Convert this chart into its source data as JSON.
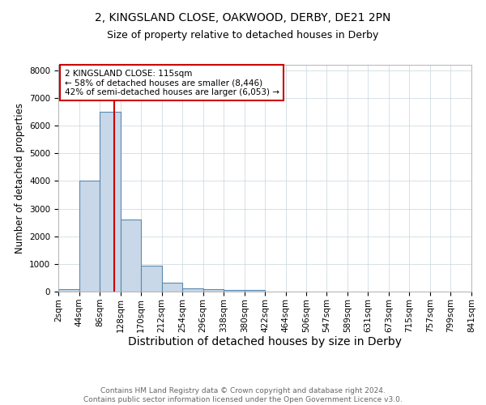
{
  "title1": "2, KINGSLAND CLOSE, OAKWOOD, DERBY, DE21 2PN",
  "title2": "Size of property relative to detached houses in Derby",
  "xlabel": "Distribution of detached houses by size in Derby",
  "ylabel": "Number of detached properties",
  "bar_edges": [
    2,
    44,
    86,
    128,
    170,
    212,
    254,
    296,
    338,
    380,
    422,
    464,
    506,
    547,
    589,
    631,
    673,
    715,
    757,
    799,
    841
  ],
  "bar_heights": [
    100,
    4000,
    6500,
    2600,
    950,
    320,
    130,
    100,
    70,
    60,
    0,
    0,
    0,
    0,
    0,
    0,
    0,
    0,
    0,
    0
  ],
  "bar_color": "#c8d8e8",
  "bar_edgecolor": "#5a8ab0",
  "bar_linewidth": 0.8,
  "vline_x": 115,
  "vline_color": "#cc0000",
  "vline_linewidth": 1.5,
  "annotation_text": "2 KINGSLAND CLOSE: 115sqm\n← 58% of detached houses are smaller (8,446)\n42% of semi-detached houses are larger (6,053) →",
  "annotation_box_color": "#cc0000",
  "annotation_text_color": "#000000",
  "ylim": [
    0,
    8200
  ],
  "xlim": [
    2,
    841
  ],
  "yticks": [
    0,
    1000,
    2000,
    3000,
    4000,
    5000,
    6000,
    7000,
    8000
  ],
  "xtick_labels": [
    "2sqm",
    "44sqm",
    "86sqm",
    "128sqm",
    "170sqm",
    "212sqm",
    "254sqm",
    "296sqm",
    "338sqm",
    "380sqm",
    "422sqm",
    "464sqm",
    "506sqm",
    "547sqm",
    "589sqm",
    "631sqm",
    "673sqm",
    "715sqm",
    "757sqm",
    "799sqm",
    "841sqm"
  ],
  "xtick_positions": [
    2,
    44,
    86,
    128,
    170,
    212,
    254,
    296,
    338,
    380,
    422,
    464,
    506,
    547,
    589,
    631,
    673,
    715,
    757,
    799,
    841
  ],
  "grid_color": "#c8d4dc",
  "bg_color": "#ffffff",
  "footnote": "Contains HM Land Registry data © Crown copyright and database right 2024.\nContains public sector information licensed under the Open Government Licence v3.0.",
  "title1_fontsize": 10,
  "title2_fontsize": 9,
  "xlabel_fontsize": 10,
  "ylabel_fontsize": 8.5,
  "tick_fontsize": 7.5,
  "annotation_fontsize": 7.5,
  "footnote_fontsize": 6.5
}
